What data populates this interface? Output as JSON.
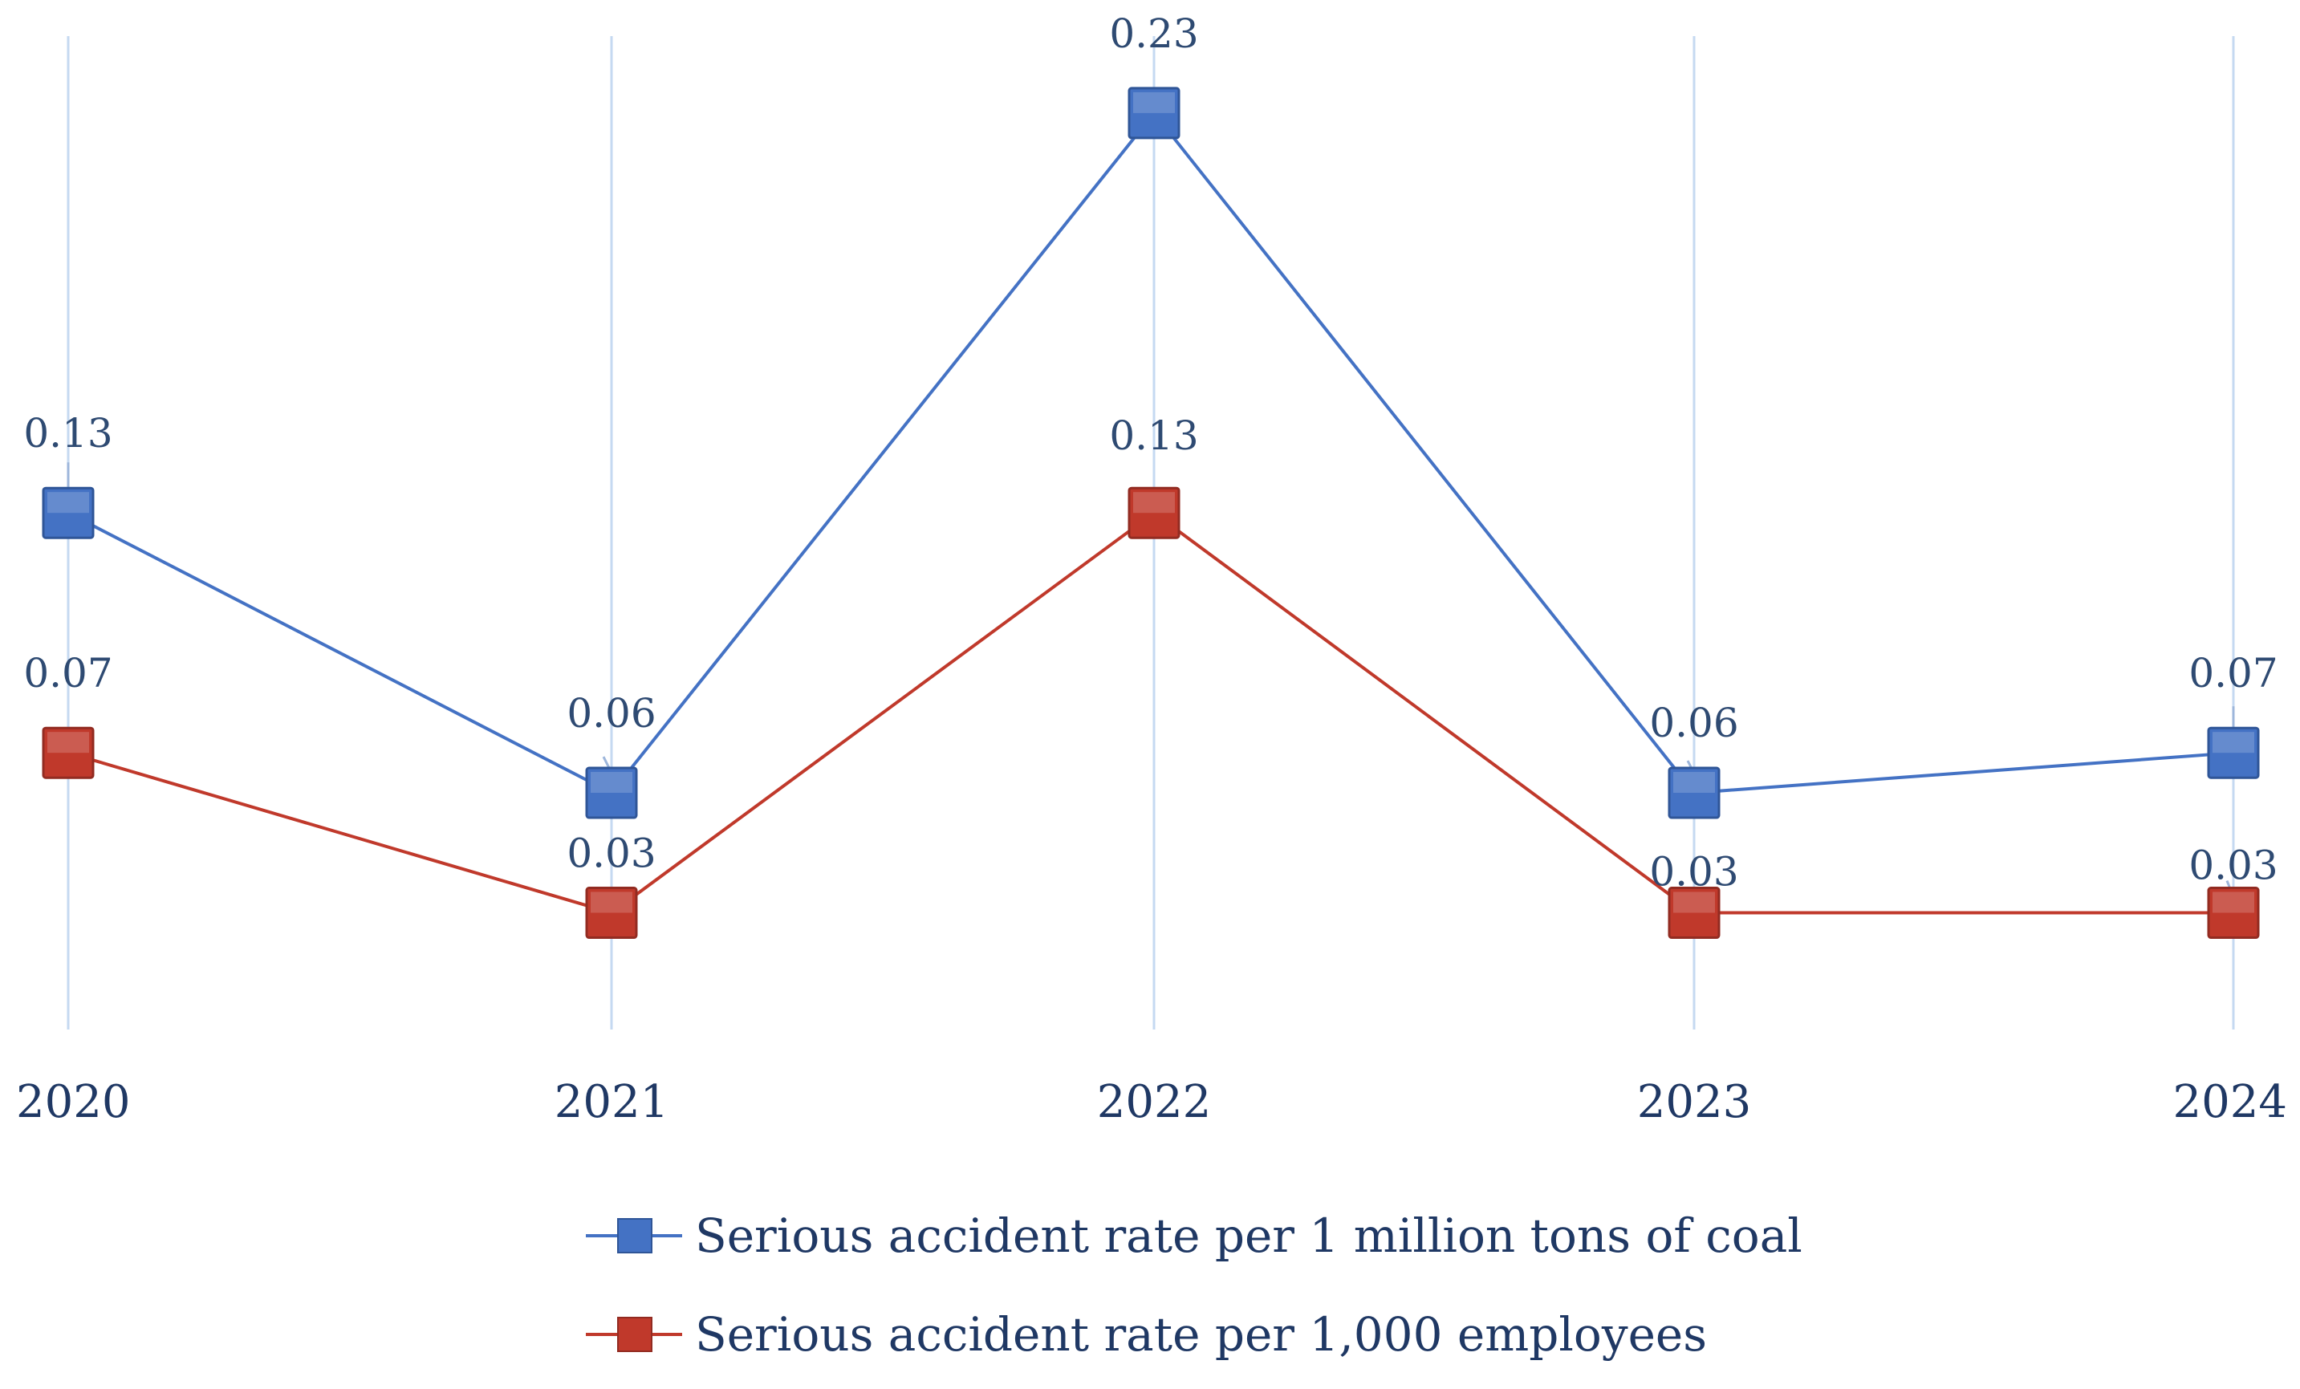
{
  "chart_data": {
    "type": "line",
    "title": "",
    "xlabel": "",
    "ylabel": "",
    "categories": [
      "2020",
      "2021",
      "2022",
      "2023",
      "2024"
    ],
    "ylim": [
      0,
      0.25
    ],
    "grid": "vertical-gridlines-only",
    "legend_position": "bottom",
    "series": [
      {
        "name": "Serious accident rate per 1 million tons of coal",
        "values": [
          0.13,
          0.06,
          0.23,
          0.06,
          0.07
        ],
        "labels": [
          "0.13",
          "0.06",
          "0.23",
          "0.06",
          "0.07"
        ],
        "color": "#4472C4",
        "marker": "square"
      },
      {
        "name": "Serious accident rate per 1,000 employees",
        "values": [
          0.07,
          0.03,
          0.13,
          0.03,
          0.03
        ],
        "labels": [
          "0.07",
          "0.03",
          "0.13",
          "0.03",
          "0.03"
        ],
        "color": "#C0392B",
        "marker": "square"
      }
    ],
    "colors": {
      "gridline": "#C5D9F1",
      "text": "#1F3864",
      "data_label": "#2E4A72"
    }
  }
}
